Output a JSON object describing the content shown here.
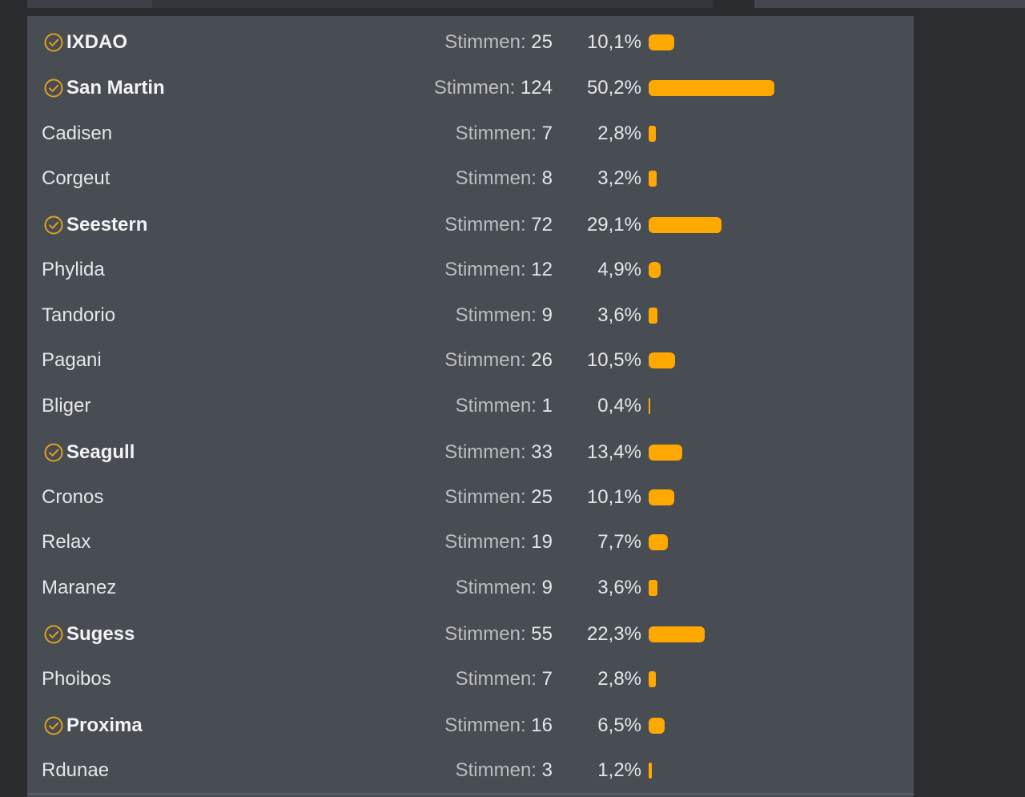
{
  "vote_label": "Stimmen:",
  "accent_color": "#ffa800",
  "rows": [
    {
      "name": "IXDAO",
      "votes": "25",
      "percent": "10,1%",
      "value": 10.1,
      "winner": true
    },
    {
      "name": "San Martin",
      "votes": "124",
      "percent": "50,2%",
      "value": 50.2,
      "winner": true
    },
    {
      "name": "Cadisen",
      "votes": "7",
      "percent": "2,8%",
      "value": 2.8,
      "winner": false
    },
    {
      "name": "Corgeut",
      "votes": "8",
      "percent": "3,2%",
      "value": 3.2,
      "winner": false
    },
    {
      "name": "Seestern",
      "votes": "72",
      "percent": "29,1%",
      "value": 29.1,
      "winner": true
    },
    {
      "name": "Phylida",
      "votes": "12",
      "percent": "4,9%",
      "value": 4.9,
      "winner": false
    },
    {
      "name": "Tandorio",
      "votes": "9",
      "percent": "3,6%",
      "value": 3.6,
      "winner": false
    },
    {
      "name": "Pagani",
      "votes": "26",
      "percent": "10,5%",
      "value": 10.5,
      "winner": false
    },
    {
      "name": "Bliger",
      "votes": "1",
      "percent": "0,4%",
      "value": 0.4,
      "winner": false
    },
    {
      "name": "Seagull",
      "votes": "33",
      "percent": "13,4%",
      "value": 13.4,
      "winner": true
    },
    {
      "name": "Cronos",
      "votes": "25",
      "percent": "10,1%",
      "value": 10.1,
      "winner": false
    },
    {
      "name": "Relax",
      "votes": "19",
      "percent": "7,7%",
      "value": 7.7,
      "winner": false
    },
    {
      "name": "Maranez",
      "votes": "9",
      "percent": "3,6%",
      "value": 3.6,
      "winner": false
    },
    {
      "name": "Sugess",
      "votes": "55",
      "percent": "22,3%",
      "value": 22.3,
      "winner": true
    },
    {
      "name": "Phoibos",
      "votes": "7",
      "percent": "2,8%",
      "value": 2.8,
      "winner": false
    },
    {
      "name": "Proxima",
      "votes": "16",
      "percent": "6,5%",
      "value": 6.5,
      "winner": true
    },
    {
      "name": "Rdunae",
      "votes": "3",
      "percent": "1,2%",
      "value": 1.2,
      "winner": false
    }
  ]
}
